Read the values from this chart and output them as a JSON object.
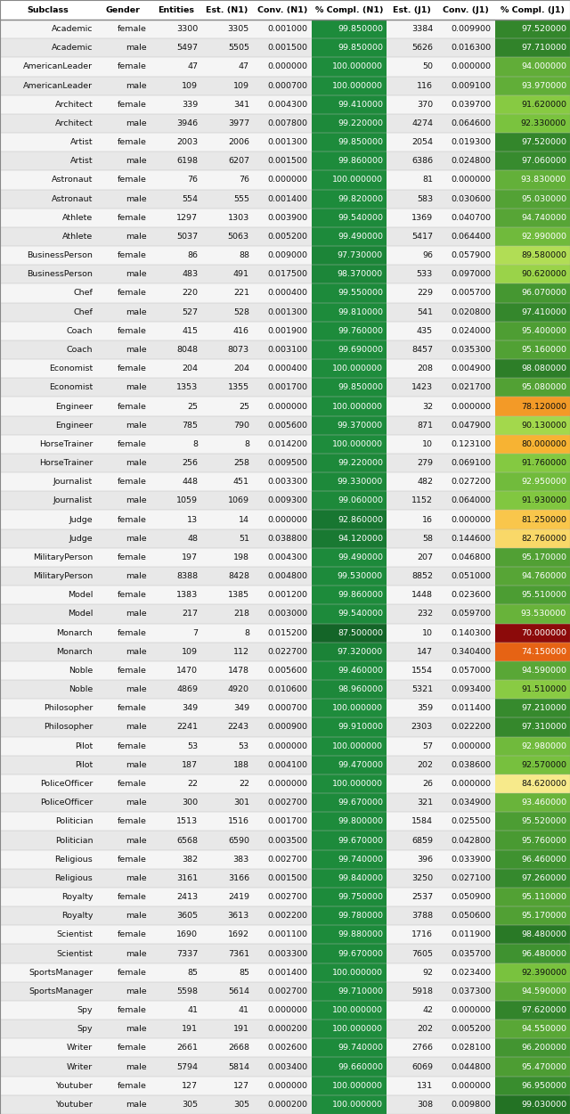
{
  "columns": [
    "Subclass",
    "Gender",
    "Entities",
    "Est. (N1)",
    "Conv. (N1)",
    "% Compl. (N1)",
    "Est. (J1)",
    "Conv. (J1)",
    "% Compl. (J1)"
  ],
  "rows": [
    [
      "Academic",
      "female",
      "3300",
      "3305",
      "0.001000",
      "99.850000",
      "3384",
      "0.009900",
      "97.520000"
    ],
    [
      "Academic",
      "male",
      "5497",
      "5505",
      "0.001500",
      "99.850000",
      "5626",
      "0.016300",
      "97.710000"
    ],
    [
      "AmericanLeader",
      "female",
      "47",
      "47",
      "0.000000",
      "100.000000",
      "50",
      "0.000000",
      "94.000000"
    ],
    [
      "AmericanLeader",
      "male",
      "109",
      "109",
      "0.000700",
      "100.000000",
      "116",
      "0.009100",
      "93.970000"
    ],
    [
      "Architect",
      "female",
      "339",
      "341",
      "0.004300",
      "99.410000",
      "370",
      "0.039700",
      "91.620000"
    ],
    [
      "Architect",
      "male",
      "3946",
      "3977",
      "0.007800",
      "99.220000",
      "4274",
      "0.064600",
      "92.330000"
    ],
    [
      "Artist",
      "female",
      "2003",
      "2006",
      "0.001300",
      "99.850000",
      "2054",
      "0.019300",
      "97.520000"
    ],
    [
      "Artist",
      "male",
      "6198",
      "6207",
      "0.001500",
      "99.860000",
      "6386",
      "0.024800",
      "97.060000"
    ],
    [
      "Astronaut",
      "female",
      "76",
      "76",
      "0.000000",
      "100.000000",
      "81",
      "0.000000",
      "93.830000"
    ],
    [
      "Astronaut",
      "male",
      "554",
      "555",
      "0.001400",
      "99.820000",
      "583",
      "0.030600",
      "95.030000"
    ],
    [
      "Athlete",
      "female",
      "1297",
      "1303",
      "0.003900",
      "99.540000",
      "1369",
      "0.040700",
      "94.740000"
    ],
    [
      "Athlete",
      "male",
      "5037",
      "5063",
      "0.005200",
      "99.490000",
      "5417",
      "0.064400",
      "92.990000"
    ],
    [
      "BusinessPerson",
      "female",
      "86",
      "88",
      "0.009000",
      "97.730000",
      "96",
      "0.057900",
      "89.580000"
    ],
    [
      "BusinessPerson",
      "male",
      "483",
      "491",
      "0.017500",
      "98.370000",
      "533",
      "0.097000",
      "90.620000"
    ],
    [
      "Chef",
      "female",
      "220",
      "221",
      "0.000400",
      "99.550000",
      "229",
      "0.005700",
      "96.070000"
    ],
    [
      "Chef",
      "male",
      "527",
      "528",
      "0.001300",
      "99.810000",
      "541",
      "0.020800",
      "97.410000"
    ],
    [
      "Coach",
      "female",
      "415",
      "416",
      "0.001900",
      "99.760000",
      "435",
      "0.024000",
      "95.400000"
    ],
    [
      "Coach",
      "male",
      "8048",
      "8073",
      "0.003100",
      "99.690000",
      "8457",
      "0.035300",
      "95.160000"
    ],
    [
      "Economist",
      "female",
      "204",
      "204",
      "0.000400",
      "100.000000",
      "208",
      "0.004900",
      "98.080000"
    ],
    [
      "Economist",
      "male",
      "1353",
      "1355",
      "0.001700",
      "99.850000",
      "1423",
      "0.021700",
      "95.080000"
    ],
    [
      "Engineer",
      "female",
      "25",
      "25",
      "0.000000",
      "100.000000",
      "32",
      "0.000000",
      "78.120000"
    ],
    [
      "Engineer",
      "male",
      "785",
      "790",
      "0.005600",
      "99.370000",
      "871",
      "0.047900",
      "90.130000"
    ],
    [
      "HorseTrainer",
      "female",
      "8",
      "8",
      "0.014200",
      "100.000000",
      "10",
      "0.123100",
      "80.000000"
    ],
    [
      "HorseTrainer",
      "male",
      "256",
      "258",
      "0.009500",
      "99.220000",
      "279",
      "0.069100",
      "91.760000"
    ],
    [
      "Journalist",
      "female",
      "448",
      "451",
      "0.003300",
      "99.330000",
      "482",
      "0.027200",
      "92.950000"
    ],
    [
      "Journalist",
      "male",
      "1059",
      "1069",
      "0.009300",
      "99.060000",
      "1152",
      "0.064000",
      "91.930000"
    ],
    [
      "Judge",
      "female",
      "13",
      "14",
      "0.000000",
      "92.860000",
      "16",
      "0.000000",
      "81.250000"
    ],
    [
      "Judge",
      "male",
      "48",
      "51",
      "0.038800",
      "94.120000",
      "58",
      "0.144600",
      "82.760000"
    ],
    [
      "MilitaryPerson",
      "female",
      "197",
      "198",
      "0.004300",
      "99.490000",
      "207",
      "0.046800",
      "95.170000"
    ],
    [
      "MilitaryPerson",
      "male",
      "8388",
      "8428",
      "0.004800",
      "99.530000",
      "8852",
      "0.051000",
      "94.760000"
    ],
    [
      "Model",
      "female",
      "1383",
      "1385",
      "0.001200",
      "99.860000",
      "1448",
      "0.023600",
      "95.510000"
    ],
    [
      "Model",
      "male",
      "217",
      "218",
      "0.003000",
      "99.540000",
      "232",
      "0.059700",
      "93.530000"
    ],
    [
      "Monarch",
      "female",
      "7",
      "8",
      "0.015200",
      "87.500000",
      "10",
      "0.140300",
      "70.000000"
    ],
    [
      "Monarch",
      "male",
      "109",
      "112",
      "0.022700",
      "97.320000",
      "147",
      "0.340400",
      "74.150000"
    ],
    [
      "Noble",
      "female",
      "1470",
      "1478",
      "0.005600",
      "99.460000",
      "1554",
      "0.057000",
      "94.590000"
    ],
    [
      "Noble",
      "male",
      "4869",
      "4920",
      "0.010600",
      "98.960000",
      "5321",
      "0.093400",
      "91.510000"
    ],
    [
      "Philosopher",
      "female",
      "349",
      "349",
      "0.000700",
      "100.000000",
      "359",
      "0.011400",
      "97.210000"
    ],
    [
      "Philosopher",
      "male",
      "2241",
      "2243",
      "0.000900",
      "99.910000",
      "2303",
      "0.022200",
      "97.310000"
    ],
    [
      "Pilot",
      "female",
      "53",
      "53",
      "0.000000",
      "100.000000",
      "57",
      "0.000000",
      "92.980000"
    ],
    [
      "Pilot",
      "male",
      "187",
      "188",
      "0.004100",
      "99.470000",
      "202",
      "0.038600",
      "92.570000"
    ],
    [
      "PoliceOfficer",
      "female",
      "22",
      "22",
      "0.000000",
      "100.000000",
      "26",
      "0.000000",
      "84.620000"
    ],
    [
      "PoliceOfficer",
      "male",
      "300",
      "301",
      "0.002700",
      "99.670000",
      "321",
      "0.034900",
      "93.460000"
    ],
    [
      "Politician",
      "female",
      "1513",
      "1516",
      "0.001700",
      "99.800000",
      "1584",
      "0.025500",
      "95.520000"
    ],
    [
      "Politician",
      "male",
      "6568",
      "6590",
      "0.003500",
      "99.670000",
      "6859",
      "0.042800",
      "95.760000"
    ],
    [
      "Religious",
      "female",
      "382",
      "383",
      "0.002700",
      "99.740000",
      "396",
      "0.033900",
      "96.460000"
    ],
    [
      "Religious",
      "male",
      "3161",
      "3166",
      "0.001500",
      "99.840000",
      "3250",
      "0.027100",
      "97.260000"
    ],
    [
      "Royalty",
      "female",
      "2413",
      "2419",
      "0.002700",
      "99.750000",
      "2537",
      "0.050900",
      "95.110000"
    ],
    [
      "Royalty",
      "male",
      "3605",
      "3613",
      "0.002200",
      "99.780000",
      "3788",
      "0.050600",
      "95.170000"
    ],
    [
      "Scientist",
      "female",
      "1690",
      "1692",
      "0.001100",
      "99.880000",
      "1716",
      "0.011900",
      "98.480000"
    ],
    [
      "Scientist",
      "male",
      "7337",
      "7361",
      "0.003300",
      "99.670000",
      "7605",
      "0.035700",
      "96.480000"
    ],
    [
      "SportsManager",
      "female",
      "85",
      "85",
      "0.001400",
      "100.000000",
      "92",
      "0.023400",
      "92.390000"
    ],
    [
      "SportsManager",
      "male",
      "5598",
      "5614",
      "0.002700",
      "99.710000",
      "5918",
      "0.037300",
      "94.590000"
    ],
    [
      "Spy",
      "female",
      "41",
      "41",
      "0.000000",
      "100.000000",
      "42",
      "0.000000",
      "97.620000"
    ],
    [
      "Spy",
      "male",
      "191",
      "191",
      "0.000200",
      "100.000000",
      "202",
      "0.005200",
      "94.550000"
    ],
    [
      "Writer",
      "female",
      "2661",
      "2668",
      "0.002600",
      "99.740000",
      "2766",
      "0.028100",
      "96.200000"
    ],
    [
      "Writer",
      "male",
      "5794",
      "5814",
      "0.003400",
      "99.660000",
      "6069",
      "0.044800",
      "95.470000"
    ],
    [
      "Youtuber",
      "female",
      "127",
      "127",
      "0.000000",
      "100.000000",
      "131",
      "0.000000",
      "96.950000"
    ],
    [
      "Youtuber",
      "male",
      "305",
      "305",
      "0.000200",
      "100.000000",
      "308",
      "0.009800",
      "99.030000"
    ]
  ],
  "col_widths_raw": [
    1.35,
    0.75,
    0.72,
    0.72,
    0.82,
    1.05,
    0.7,
    0.82,
    1.05
  ],
  "n1_compl_bg": "#1a7a3c",
  "alt_row_bg1": "#f0f0f0",
  "alt_row_bg2": "#e0e0e0",
  "header_fontsize": 6.8,
  "cell_fontsize": 6.8
}
